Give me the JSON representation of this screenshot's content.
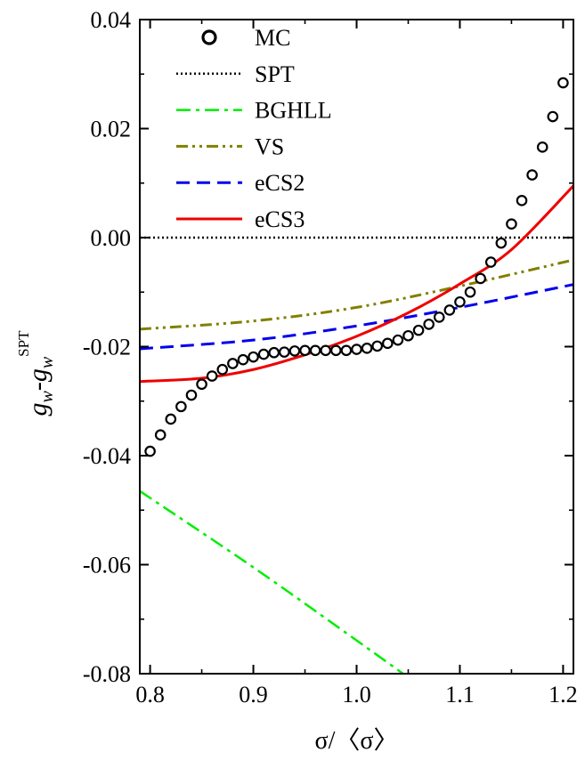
{
  "chart_data": {
    "type": "line",
    "xlabel": "σ/〈σ〉",
    "ylabel": {
      "g": "g",
      "sub": "w",
      "minus": "-",
      "sup": "SPT"
    },
    "xlim": [
      0.79,
      1.21
    ],
    "ylim": [
      -0.08,
      0.04
    ],
    "xticks": [
      0.8,
      0.9,
      1.0,
      1.1,
      1.2
    ],
    "xtick_labels": [
      "0.8",
      "0.9",
      "1.0",
      "1.1",
      "1.2"
    ],
    "yticks": [
      -0.08,
      -0.06,
      -0.04,
      -0.02,
      0.0,
      0.02,
      0.04
    ],
    "ytick_labels": [
      "-0.08",
      "-0.06",
      "-0.04",
      "-0.02",
      "0.00",
      "0.02",
      "0.04"
    ],
    "legend_position": "top-left",
    "series": [
      {
        "name": "MC",
        "style": "open-circles",
        "color": "#000000",
        "x": [
          0.8,
          0.81,
          0.82,
          0.83,
          0.84,
          0.85,
          0.86,
          0.87,
          0.88,
          0.89,
          0.9,
          0.91,
          0.92,
          0.93,
          0.94,
          0.95,
          0.96,
          0.97,
          0.98,
          0.99,
          1.0,
          1.01,
          1.02,
          1.03,
          1.04,
          1.05,
          1.06,
          1.07,
          1.08,
          1.09,
          1.1,
          1.11,
          1.12,
          1.13,
          1.14,
          1.15,
          1.16,
          1.17,
          1.18,
          1.19,
          1.2
        ],
        "y": [
          -0.0392,
          -0.0362,
          -0.0333,
          -0.031,
          -0.0289,
          -0.0269,
          -0.0254,
          -0.0242,
          -0.0231,
          -0.0224,
          -0.0219,
          -0.0214,
          -0.0211,
          -0.021,
          -0.0208,
          -0.0207,
          -0.0207,
          -0.0207,
          -0.0207,
          -0.0207,
          -0.0205,
          -0.0203,
          -0.0199,
          -0.0194,
          -0.0188,
          -0.018,
          -0.017,
          -0.0159,
          -0.0146,
          -0.0133,
          -0.0118,
          -0.01,
          -0.0075,
          -0.0045,
          -0.001,
          0.0025,
          0.0068,
          0.0115,
          0.0166,
          0.0222,
          0.0284
        ]
      },
      {
        "name": "SPT",
        "style": "dotted",
        "color": "#000000",
        "x": [
          0.79,
          1.21
        ],
        "y": [
          0.0,
          0.0
        ]
      },
      {
        "name": "BGHLL",
        "style": "dash-dot",
        "color": "#00ee00",
        "x": [
          0.79,
          0.9,
          1.0,
          1.045
        ],
        "y": [
          -0.0465,
          -0.0605,
          -0.0739,
          -0.08
        ]
      },
      {
        "name": "VS",
        "style": "dash-dot-dot",
        "color": "#808000",
        "x": [
          0.79,
          0.9,
          1.0,
          1.1,
          1.21
        ],
        "y": [
          -0.0168,
          -0.0153,
          -0.0128,
          -0.0089,
          -0.0041
        ]
      },
      {
        "name": "eCS2",
        "style": "dashed",
        "color": "#0000ee",
        "x": [
          0.79,
          0.9,
          1.0,
          1.1,
          1.21
        ],
        "y": [
          -0.0204,
          -0.0188,
          -0.0162,
          -0.0128,
          -0.0086
        ]
      },
      {
        "name": "eCS3",
        "style": "solid",
        "color": "#ee0000",
        "x": [
          0.79,
          0.85,
          0.9,
          0.95,
          1.0,
          1.05,
          1.1,
          1.15,
          1.21
        ],
        "y": [
          -0.0264,
          -0.0258,
          -0.0242,
          -0.0215,
          -0.0181,
          -0.0138,
          -0.0085,
          -0.0022,
          0.0095
        ]
      }
    ]
  }
}
